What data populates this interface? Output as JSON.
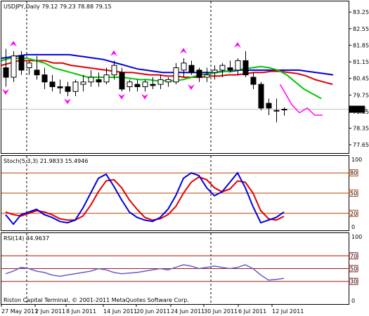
{
  "colors": {
    "background": "#ffffff",
    "frame": "#000000",
    "grid": "#000000",
    "ma_fast": "#00c800",
    "ma_mid": "#e00000",
    "ma_slow": "#0000e0",
    "fractal": "#ff00ff",
    "forecast": "#ff00ff",
    "stoch_main": "#0000e0",
    "stoch_signal": "#e00000",
    "level_line": "#c04000",
    "rsi": "#6a5acd",
    "rsi_level": "#9b1a1a",
    "price_marker_bg": "#000000",
    "price_marker_fg": "#ffffff"
  },
  "main": {
    "header": "USDJPY,Daily  79.12 79.23 78.88 79.15",
    "price_ticks": [
      "83.25",
      "82.55",
      "81.85",
      "81.15",
      "80.45",
      "79.75",
      "79.05",
      "78.35",
      "77.65"
    ],
    "current_price": "79.15",
    "watermark": "Riston Capital Terminal, © 2001-2011 MetaQuotes Software Corp."
  },
  "stoch": {
    "header": "Stoch(5,3,3) 21.9833 15.4946",
    "ticks": [
      "100",
      "80",
      "50",
      "20",
      "0"
    ],
    "level_labels": [
      "80",
      "50",
      "20"
    ]
  },
  "rsi": {
    "header": "RSI(14) 34.9637",
    "ticks": [
      "100",
      "70",
      "50",
      "30",
      "0"
    ],
    "level_labels": [
      "70",
      "50",
      "30"
    ]
  },
  "xaxis": {
    "labels": [
      "27 May 2011",
      "2 Jun 2011",
      "8 Jun 2011",
      "14 Jun 2011",
      "20 Jun 2011",
      "24 Jun 2011",
      "30 Jun 2011",
      "6 Jul 2011",
      "12 Jul 2011"
    ]
  },
  "chart_data": {
    "type": "candlestick",
    "symbol": "USDJPY",
    "timeframe": "Daily",
    "last_ohlc": {
      "open": 79.12,
      "high": 79.23,
      "low": 78.88,
      "close": 79.15
    },
    "y_range": [
      77.3,
      83.7
    ],
    "candles": [
      {
        "o": 80.9,
        "h": 81.7,
        "l": 80.1,
        "c": 80.5
      },
      {
        "o": 80.5,
        "h": 81.6,
        "l": 80.3,
        "c": 81.4
      },
      {
        "o": 81.4,
        "h": 81.6,
        "l": 80.6,
        "c": 80.8
      },
      {
        "o": 80.9,
        "h": 81.2,
        "l": 80.6,
        "c": 81.1
      },
      {
        "o": 80.8,
        "h": 81.4,
        "l": 80.4,
        "c": 80.6
      },
      {
        "o": 80.6,
        "h": 80.9,
        "l": 80.0,
        "c": 80.3
      },
      {
        "o": 80.3,
        "h": 80.6,
        "l": 79.9,
        "c": 80.1
      },
      {
        "o": 80.1,
        "h": 80.4,
        "l": 79.8,
        "c": 80.05
      },
      {
        "o": 80.1,
        "h": 80.3,
        "l": 79.7,
        "c": 79.9
      },
      {
        "o": 79.9,
        "h": 80.4,
        "l": 79.7,
        "c": 80.3
      },
      {
        "o": 80.2,
        "h": 80.6,
        "l": 79.9,
        "c": 80.3
      },
      {
        "o": 80.3,
        "h": 80.8,
        "l": 80.1,
        "c": 80.5
      },
      {
        "o": 80.4,
        "h": 80.7,
        "l": 80.1,
        "c": 80.3
      },
      {
        "o": 80.3,
        "h": 80.9,
        "l": 80.2,
        "c": 80.6
      },
      {
        "o": 80.6,
        "h": 81.2,
        "l": 80.4,
        "c": 81.0
      },
      {
        "o": 80.7,
        "h": 80.9,
        "l": 79.9,
        "c": 80.0
      },
      {
        "o": 80.1,
        "h": 80.4,
        "l": 79.9,
        "c": 80.3
      },
      {
        "o": 80.2,
        "h": 80.4,
        "l": 79.9,
        "c": 80.1
      },
      {
        "o": 80.1,
        "h": 80.4,
        "l": 79.9,
        "c": 80.3
      },
      {
        "o": 80.2,
        "h": 80.5,
        "l": 80.0,
        "c": 80.15
      },
      {
        "o": 80.2,
        "h": 80.6,
        "l": 80.0,
        "c": 80.4
      },
      {
        "o": 80.3,
        "h": 80.5,
        "l": 80.1,
        "c": 80.4
      },
      {
        "o": 80.3,
        "h": 81.1,
        "l": 80.2,
        "c": 80.9
      },
      {
        "o": 80.8,
        "h": 81.3,
        "l": 80.5,
        "c": 81.1
      },
      {
        "o": 81.0,
        "h": 81.2,
        "l": 80.6,
        "c": 80.7
      },
      {
        "o": 80.8,
        "h": 80.9,
        "l": 80.3,
        "c": 80.5
      },
      {
        "o": 80.5,
        "h": 80.9,
        "l": 80.3,
        "c": 80.6
      },
      {
        "o": 80.7,
        "h": 81.0,
        "l": 80.4,
        "c": 80.8
      },
      {
        "o": 80.8,
        "h": 81.1,
        "l": 80.5,
        "c": 81.0
      },
      {
        "o": 80.9,
        "h": 81.2,
        "l": 80.7,
        "c": 80.8
      },
      {
        "o": 80.8,
        "h": 81.3,
        "l": 80.6,
        "c": 81.2
      },
      {
        "o": 81.2,
        "h": 81.6,
        "l": 80.5,
        "c": 80.6
      },
      {
        "o": 80.5,
        "h": 80.7,
        "l": 80.0,
        "c": 80.2
      },
      {
        "o": 80.2,
        "h": 80.3,
        "l": 79.1,
        "c": 79.2
      },
      {
        "o": 79.4,
        "h": 79.6,
        "l": 78.9,
        "c": 79.2
      },
      {
        "o": 79.1,
        "h": 79.6,
        "l": 78.6,
        "c": 79.1
      },
      {
        "o": 79.12,
        "h": 79.23,
        "l": 78.88,
        "c": 79.15
      }
    ],
    "ma_fast": [
      81.2,
      81.3,
      81.3,
      81.3,
      81.2,
      81.1,
      80.9,
      80.8,
      80.7,
      80.6,
      80.5,
      80.5,
      80.5,
      80.5,
      80.5,
      80.45,
      80.4,
      80.4,
      80.35,
      80.35,
      80.35,
      80.4,
      80.5,
      80.6,
      80.65,
      80.7,
      80.75,
      80.8,
      80.85,
      80.9,
      80.95,
      80.9,
      80.8,
      80.6,
      80.3,
      80.0,
      79.8,
      79.6
    ],
    "ma_mid": [
      81.0,
      81.1,
      81.2,
      81.2,
      81.2,
      81.2,
      81.1,
      81.1,
      81.0,
      80.95,
      80.9,
      80.85,
      80.8,
      80.75,
      80.7,
      80.7,
      80.65,
      80.6,
      80.6,
      80.55,
      80.55,
      80.5,
      80.5,
      80.5,
      80.55,
      80.55,
      80.6,
      80.6,
      80.65,
      80.7,
      80.7,
      80.75,
      80.75,
      80.7,
      80.65,
      80.55,
      80.4,
      80.3,
      80.2
    ],
    "ma_slow": [
      81.3,
      81.35,
      81.4,
      81.45,
      81.45,
      81.45,
      81.45,
      81.45,
      81.45,
      81.4,
      81.35,
      81.3,
      81.25,
      81.15,
      81.05,
      80.95,
      80.85,
      80.8,
      80.75,
      80.7,
      80.7,
      80.7,
      80.7,
      80.7,
      80.7,
      80.7,
      80.75,
      80.75,
      80.8,
      80.8,
      80.8,
      80.8,
      80.8,
      80.8,
      80.8,
      80.8,
      80.75,
      80.7,
      80.65,
      80.6
    ],
    "fractals_up": [
      {
        "i": 1,
        "v": 81.8
      },
      {
        "i": 14,
        "v": 81.4
      },
      {
        "i": 23,
        "v": 81.5
      },
      {
        "i": 30,
        "v": 81.75
      }
    ],
    "fractals_down": [
      {
        "i": 0,
        "v": 80.0
      },
      {
        "i": 8,
        "v": 79.6
      },
      {
        "i": 15,
        "v": 79.8
      },
      {
        "i": 18,
        "v": 79.8
      },
      {
        "i": 24,
        "v": 80.2
      }
    ],
    "forecast": [
      {
        "i": 35.5,
        "v": 80.2
      },
      {
        "i": 37,
        "v": 79.35
      },
      {
        "i": 38,
        "v": 79.0
      },
      {
        "i": 39,
        "v": 79.2
      },
      {
        "i": 40,
        "v": 78.9
      },
      {
        "i": 41,
        "v": 78.9
      }
    ],
    "stoch_range": [
      0,
      100
    ],
    "stoch_levels": [
      80,
      50,
      20
    ],
    "stoch_main": [
      18,
      4,
      18,
      22,
      26,
      18,
      14,
      8,
      6,
      10,
      28,
      50,
      72,
      78,
      60,
      40,
      22,
      14,
      10,
      8,
      14,
      26,
      46,
      72,
      80,
      76,
      58,
      46,
      52,
      66,
      80,
      58,
      30,
      6,
      10,
      14,
      21.98
    ],
    "stoch_signal": [
      22,
      18,
      16,
      20,
      24,
      22,
      18,
      12,
      10,
      10,
      16,
      32,
      52,
      68,
      70,
      58,
      40,
      26,
      14,
      10,
      12,
      18,
      30,
      50,
      66,
      74,
      70,
      58,
      52,
      56,
      68,
      66,
      50,
      24,
      12,
      10,
      15.49
    ],
    "rsi_range": [
      0,
      100
    ],
    "rsi_levels": [
      70,
      50,
      30
    ],
    "rsi": [
      42,
      46,
      52,
      50,
      46,
      44,
      40,
      38,
      40,
      42,
      44,
      46,
      50,
      48,
      44,
      42,
      43,
      44,
      46,
      48,
      50,
      48,
      52,
      56,
      54,
      50,
      52,
      54,
      52,
      50,
      52,
      56,
      50,
      40,
      32,
      33,
      34.96
    ]
  }
}
